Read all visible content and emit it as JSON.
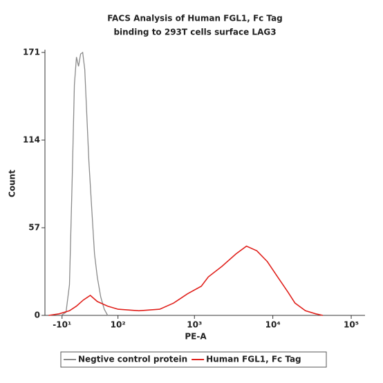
{
  "chart_data": {
    "type": "line",
    "title": "FACS Analysis of Human FGL1, Fc Tag",
    "subtitle": "binding to 293T cells surface LAG3",
    "xlabel": "PE-A",
    "ylabel": "Count",
    "xscale": "biexponential",
    "xlim": [
      -38,
      150000
    ],
    "xticks": [
      {
        "value": -10,
        "label": "-10¹"
      },
      {
        "value": 100,
        "label": "10²"
      },
      {
        "value": 1000,
        "label": "10³"
      },
      {
        "value": 10000,
        "label": "10⁴"
      },
      {
        "value": 100000,
        "label": "10⁵"
      }
    ],
    "ylim": [
      0,
      171
    ],
    "yticks": [
      0,
      57,
      114,
      171
    ],
    "legend": "bottom",
    "series": [
      {
        "name": "Negtive control protein",
        "color": "#8a8a8a",
        "x": [
          -11.3,
          -4.1,
          1.0,
          5.1,
          8.2,
          11.3,
          14.5,
          17.7,
          20.9,
          24.3,
          27.7,
          31.3,
          36.2,
          41.4,
          46.8,
          54.1,
          61.9,
          70.2
        ],
        "values": [
          0,
          2,
          20,
          90,
          150,
          168,
          162,
          170,
          171,
          160,
          130,
          100,
          70,
          40,
          25,
          12,
          4,
          0
        ]
      },
      {
        "name": "Human FGL1, Fc Tag",
        "color": "#e0201b",
        "x": [
          -31.3,
          -14.5,
          1.0,
          11.3,
          22.1,
          33.7,
          46.8,
          70.2,
          100.4,
          192.6,
          359,
          541,
          814,
          1225,
          1502,
          2258,
          3395,
          4608,
          6255,
          8492,
          11528,
          15650,
          19187,
          26043,
          35350,
          43350
        ],
        "values": [
          0,
          1,
          3,
          6,
          10,
          13,
          9,
          6,
          4,
          3,
          4,
          8,
          14,
          19,
          25,
          32,
          40,
          45,
          42,
          35,
          25,
          15,
          8,
          3,
          1,
          0
        ]
      }
    ]
  }
}
